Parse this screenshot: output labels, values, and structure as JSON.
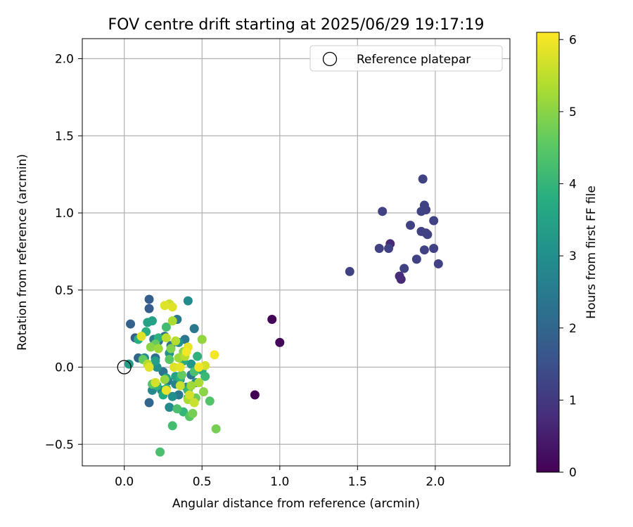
{
  "chart_data": {
    "type": "scatter",
    "title": "FOV centre drift starting at 2025/06/29 19:17:19",
    "xlabel": "Angular distance from reference (arcmin)",
    "ylabel": "Rotation from reference (arcmin)",
    "xlim": [
      -0.27,
      2.48
    ],
    "ylim": [
      -0.64,
      2.13
    ],
    "xticks": [
      0.0,
      0.5,
      1.0,
      1.5,
      2.0
    ],
    "xtick_labels": [
      "0.0",
      "0.5",
      "1.0",
      "1.5",
      "2.0"
    ],
    "yticks": [
      -0.5,
      0.0,
      0.5,
      1.0,
      1.5,
      2.0
    ],
    "ytick_labels": [
      "−0.5",
      "0.0",
      "0.5",
      "1.0",
      "1.5",
      "2.0"
    ],
    "grid": true,
    "legend": {
      "placement": "top-right",
      "entries": [
        "Reference platepar"
      ]
    },
    "reference_point": {
      "x": 0.0,
      "y": 0.0
    },
    "colorbar": {
      "label": "Hours from first FF file",
      "colormap": "viridis",
      "range": [
        0,
        6.1
      ],
      "ticks": [
        0,
        1,
        2,
        3,
        4,
        5,
        6
      ],
      "tick_labels": [
        "0",
        "1",
        "2",
        "3",
        "4",
        "5",
        "6"
      ]
    },
    "points": [
      {
        "x": 0.84,
        "y": -0.18,
        "h": 0.02
      },
      {
        "x": 0.95,
        "y": 0.31,
        "h": 0.05
      },
      {
        "x": 1.0,
        "y": 0.16,
        "h": 0.08
      },
      {
        "x": 1.71,
        "y": 0.8,
        "h": 0.7
      },
      {
        "x": 1.78,
        "y": 0.57,
        "h": 0.7
      },
      {
        "x": 1.77,
        "y": 0.59,
        "h": 0.75
      },
      {
        "x": 1.45,
        "y": 0.62,
        "h": 1.2
      },
      {
        "x": 1.66,
        "y": 1.01,
        "h": 1.2
      },
      {
        "x": 1.64,
        "y": 0.77,
        "h": 1.2
      },
      {
        "x": 1.7,
        "y": 0.77,
        "h": 1.2
      },
      {
        "x": 1.8,
        "y": 0.64,
        "h": 1.2
      },
      {
        "x": 1.84,
        "y": 0.92,
        "h": 1.2
      },
      {
        "x": 1.88,
        "y": 0.7,
        "h": 1.2
      },
      {
        "x": 1.91,
        "y": 0.88,
        "h": 1.2
      },
      {
        "x": 1.91,
        "y": 1.01,
        "h": 1.2
      },
      {
        "x": 1.92,
        "y": 1.22,
        "h": 1.2
      },
      {
        "x": 1.93,
        "y": 1.05,
        "h": 1.2
      },
      {
        "x": 1.94,
        "y": 1.02,
        "h": 1.2
      },
      {
        "x": 1.94,
        "y": 0.87,
        "h": 1.2
      },
      {
        "x": 1.95,
        "y": 0.86,
        "h": 1.2
      },
      {
        "x": 1.93,
        "y": 0.76,
        "h": 1.2
      },
      {
        "x": 1.99,
        "y": 0.95,
        "h": 1.2
      },
      {
        "x": 1.99,
        "y": 0.77,
        "h": 1.2
      },
      {
        "x": 2.02,
        "y": 0.67,
        "h": 1.2
      },
      {
        "x": 0.16,
        "y": 0.44,
        "h": 1.8
      },
      {
        "x": 0.16,
        "y": 0.38,
        "h": 1.8
      },
      {
        "x": 0.04,
        "y": 0.28,
        "h": 1.9
      },
      {
        "x": 0.07,
        "y": 0.19,
        "h": 1.8
      },
      {
        "x": 0.09,
        "y": 0.06,
        "h": 2.0
      },
      {
        "x": 0.16,
        "y": -0.23,
        "h": 2.0
      },
      {
        "x": 0.2,
        "y": 0.06,
        "h": 2.2
      },
      {
        "x": 0.22,
        "y": 0.17,
        "h": 2.2
      },
      {
        "x": 0.26,
        "y": 0.2,
        "h": 2.3
      },
      {
        "x": 0.3,
        "y": 0.14,
        "h": 2.3
      },
      {
        "x": 0.34,
        "y": 0.31,
        "h": 2.4
      },
      {
        "x": 0.45,
        "y": 0.25,
        "h": 2.4
      },
      {
        "x": 0.39,
        "y": 0.18,
        "h": 2.4
      },
      {
        "x": 0.25,
        "y": -0.03,
        "h": 2.3
      },
      {
        "x": 0.35,
        "y": -0.18,
        "h": 2.4
      },
      {
        "x": 0.28,
        "y": -0.09,
        "h": 2.4
      },
      {
        "x": 0.43,
        "y": -0.05,
        "h": 2.4
      },
      {
        "x": 0.19,
        "y": 0.18,
        "h": 2.6
      },
      {
        "x": 0.33,
        "y": -0.11,
        "h": 2.7
      },
      {
        "x": 0.41,
        "y": 0.43,
        "h": 2.9
      },
      {
        "x": 0.13,
        "y": 0.06,
        "h": 2.9
      },
      {
        "x": 0.18,
        "y": -0.15,
        "h": 2.8
      },
      {
        "x": 0.24,
        "y": -0.15,
        "h": 2.8
      },
      {
        "x": 0.29,
        "y": -0.26,
        "h": 2.9
      },
      {
        "x": 0.36,
        "y": -0.08,
        "h": 2.9
      },
      {
        "x": 0.31,
        "y": -0.19,
        "h": 3.0
      },
      {
        "x": 0.4,
        "y": -0.13,
        "h": 3.0
      },
      {
        "x": 0.46,
        "y": -0.1,
        "h": 3.0
      },
      {
        "x": 0.21,
        "y": 0.0,
        "h": 3.0
      },
      {
        "x": 0.29,
        "y": 0.09,
        "h": 3.1
      },
      {
        "x": 0.35,
        "y": 0.16,
        "h": 3.1
      },
      {
        "x": 0.43,
        "y": 0.02,
        "h": 3.2
      },
      {
        "x": 0.03,
        "y": 0.02,
        "h": 3.3
      },
      {
        "x": 0.15,
        "y": 0.29,
        "h": 3.5
      },
      {
        "x": 0.18,
        "y": 0.3,
        "h": 3.5
      },
      {
        "x": 0.2,
        "y": 0.04,
        "h": 3.4
      },
      {
        "x": 0.27,
        "y": -0.07,
        "h": 3.5
      },
      {
        "x": 0.33,
        "y": -0.06,
        "h": 3.5
      },
      {
        "x": 0.41,
        "y": -0.2,
        "h": 3.6
      },
      {
        "x": 0.25,
        "y": -0.18,
        "h": 3.7
      },
      {
        "x": 0.38,
        "y": 0.04,
        "h": 3.7
      },
      {
        "x": 0.5,
        "y": -0.02,
        "h": 3.7
      },
      {
        "x": 0.09,
        "y": 0.18,
        "h": 3.8
      },
      {
        "x": 0.14,
        "y": 0.23,
        "h": 3.8
      },
      {
        "x": 0.22,
        "y": 0.19,
        "h": 3.9
      },
      {
        "x": 0.36,
        "y": -0.07,
        "h": 3.9
      },
      {
        "x": 0.47,
        "y": 0.07,
        "h": 3.9
      },
      {
        "x": 0.21,
        "y": -0.12,
        "h": 3.9
      },
      {
        "x": 0.38,
        "y": -0.29,
        "h": 4.0
      },
      {
        "x": 0.27,
        "y": -0.14,
        "h": 4.0
      },
      {
        "x": 0.52,
        "y": -0.06,
        "h": 4.1
      },
      {
        "x": 0.41,
        "y": -0.15,
        "h": 4.1
      },
      {
        "x": 0.27,
        "y": 0.26,
        "h": 4.2
      },
      {
        "x": 0.31,
        "y": -0.38,
        "h": 4.2
      },
      {
        "x": 0.23,
        "y": -0.55,
        "h": 4.3
      },
      {
        "x": 0.34,
        "y": -0.27,
        "h": 4.3
      },
      {
        "x": 0.45,
        "y": -0.03,
        "h": 4.3
      },
      {
        "x": 0.55,
        "y": -0.22,
        "h": 4.4
      },
      {
        "x": 0.42,
        "y": -0.32,
        "h": 4.5
      },
      {
        "x": 0.18,
        "y": -0.11,
        "h": 4.5
      },
      {
        "x": 0.29,
        "y": 0.05,
        "h": 4.5
      },
      {
        "x": 0.2,
        "y": 0.15,
        "h": 4.6
      },
      {
        "x": 0.12,
        "y": 0.05,
        "h": 4.6
      },
      {
        "x": 0.37,
        "y": -0.05,
        "h": 4.6
      },
      {
        "x": 0.46,
        "y": -0.2,
        "h": 4.7
      },
      {
        "x": 0.59,
        "y": -0.4,
        "h": 4.8
      },
      {
        "x": 0.44,
        "y": -0.3,
        "h": 4.8
      },
      {
        "x": 0.3,
        "y": 0.12,
        "h": 4.9
      },
      {
        "x": 0.51,
        "y": -0.16,
        "h": 5.0
      },
      {
        "x": 0.38,
        "y": 0.1,
        "h": 5.0
      },
      {
        "x": 0.17,
        "y": 0.13,
        "h": 5.0
      },
      {
        "x": 0.26,
        "y": -0.08,
        "h": 5.1
      },
      {
        "x": 0.5,
        "y": 0.18,
        "h": 5.1
      },
      {
        "x": 0.43,
        "y": -0.12,
        "h": 5.2
      },
      {
        "x": 0.35,
        "y": 0.06,
        "h": 5.2
      },
      {
        "x": 0.22,
        "y": 0.12,
        "h": 5.2
      },
      {
        "x": 0.31,
        "y": 0.3,
        "h": 5.3
      },
      {
        "x": 0.41,
        "y": -0.21,
        "h": 5.3
      },
      {
        "x": 0.48,
        "y": -0.1,
        "h": 5.3
      },
      {
        "x": 0.15,
        "y": 0.02,
        "h": 5.4
      },
      {
        "x": 0.33,
        "y": 0.17,
        "h": 5.4
      },
      {
        "x": 0.39,
        "y": 0.07,
        "h": 5.4
      },
      {
        "x": 0.27,
        "y": 0.19,
        "h": 5.5
      },
      {
        "x": 0.45,
        "y": -0.23,
        "h": 5.6
      },
      {
        "x": 0.36,
        "y": -0.12,
        "h": 5.6
      },
      {
        "x": 0.29,
        "y": 0.41,
        "h": 5.6
      },
      {
        "x": 0.52,
        "y": 0.01,
        "h": 5.7
      },
      {
        "x": 0.2,
        "y": -0.1,
        "h": 5.7
      },
      {
        "x": 0.42,
        "y": -0.18,
        "h": 5.7
      },
      {
        "x": 0.32,
        "y": 0.0,
        "h": 5.8
      },
      {
        "x": 0.26,
        "y": 0.4,
        "h": 5.8
      },
      {
        "x": 0.31,
        "y": 0.39,
        "h": 5.8
      },
      {
        "x": 0.11,
        "y": 0.2,
        "h": 5.8
      },
      {
        "x": 0.16,
        "y": 0.0,
        "h": 5.8
      },
      {
        "x": 0.27,
        "y": -0.15,
        "h": 5.9
      },
      {
        "x": 0.36,
        "y": 0.0,
        "h": 5.9
      },
      {
        "x": 0.41,
        "y": 0.13,
        "h": 5.9
      },
      {
        "x": 0.48,
        "y": 0.0,
        "h": 6.0
      },
      {
        "x": 0.58,
        "y": 0.08,
        "h": 6.0
      },
      {
        "x": 0.4,
        "y": 0.1,
        "h": 6.0
      }
    ]
  }
}
